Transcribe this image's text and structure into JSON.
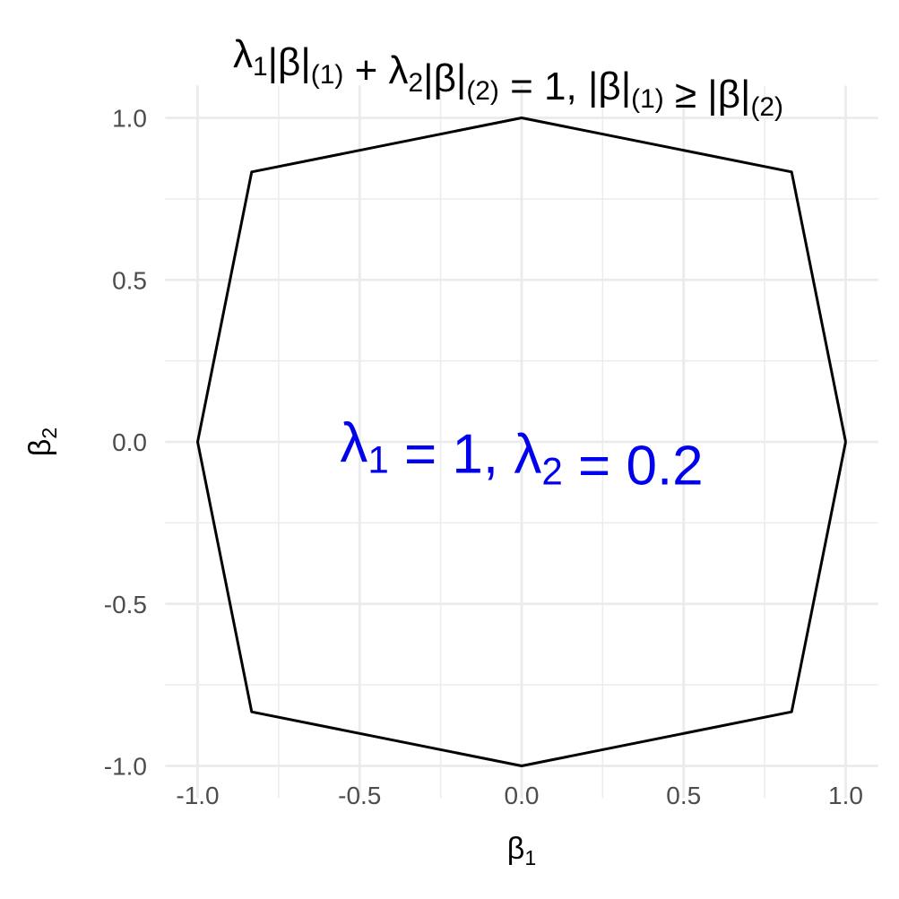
{
  "chart_data": {
    "type": "line",
    "title": {
      "runs": [
        {
          "t": "λ"
        },
        {
          "t": "1",
          "sub": true
        },
        {
          "t": "|β|"
        },
        {
          "t": "(1)",
          "sub": true
        },
        {
          "t": " + λ"
        },
        {
          "t": "2",
          "sub": true
        },
        {
          "t": "|β|"
        },
        {
          "t": "(2)",
          "sub": true
        },
        {
          "t": " = 1, |β|"
        },
        {
          "t": "(1)",
          "sub": true
        },
        {
          "t": " ≥ |β|"
        },
        {
          "t": "(2)",
          "sub": true
        }
      ]
    },
    "xlabel": {
      "runs": [
        {
          "t": "β"
        },
        {
          "t": "1",
          "sub": true
        }
      ]
    },
    "ylabel": {
      "runs": [
        {
          "t": "β"
        },
        {
          "t": "2",
          "sub": true
        }
      ]
    },
    "xlim": [
      -1.1,
      1.1
    ],
    "ylim": [
      -1.1,
      1.1
    ],
    "x_ticks": [
      -1.0,
      -0.5,
      0.0,
      0.5,
      1.0
    ],
    "y_ticks": [
      -1.0,
      -0.5,
      0.0,
      0.5,
      1.0
    ],
    "x_tick_labels": [
      "-1.0",
      "-0.5",
      "0.0",
      "0.5",
      "1.0"
    ],
    "y_tick_labels": [
      "-1.0",
      "-0.5",
      "0.0",
      "0.5",
      "1.0"
    ],
    "minor_ticks": [
      -0.75,
      -0.25,
      0.25,
      0.75
    ],
    "grid": true,
    "series": [
      {
        "color": "#000000",
        "points": [
          [
            1.0,
            0.0
          ],
          [
            0.8333,
            0.8333
          ],
          [
            0.0,
            1.0
          ],
          [
            -0.8333,
            0.8333
          ],
          [
            -1.0,
            0.0
          ],
          [
            -0.8333,
            -0.8333
          ],
          [
            0.0,
            -1.0
          ],
          [
            0.8333,
            -0.8333
          ],
          [
            1.0,
            0.0
          ]
        ]
      }
    ],
    "annotation": {
      "x": 0.0,
      "y": 0.0,
      "color": "#0000ee",
      "runs": [
        {
          "t": "λ"
        },
        {
          "t": "1",
          "sub": true
        },
        {
          "t": " = 1, λ"
        },
        {
          "t": "2",
          "sub": true
        },
        {
          "t": " = 0.2"
        }
      ]
    }
  }
}
